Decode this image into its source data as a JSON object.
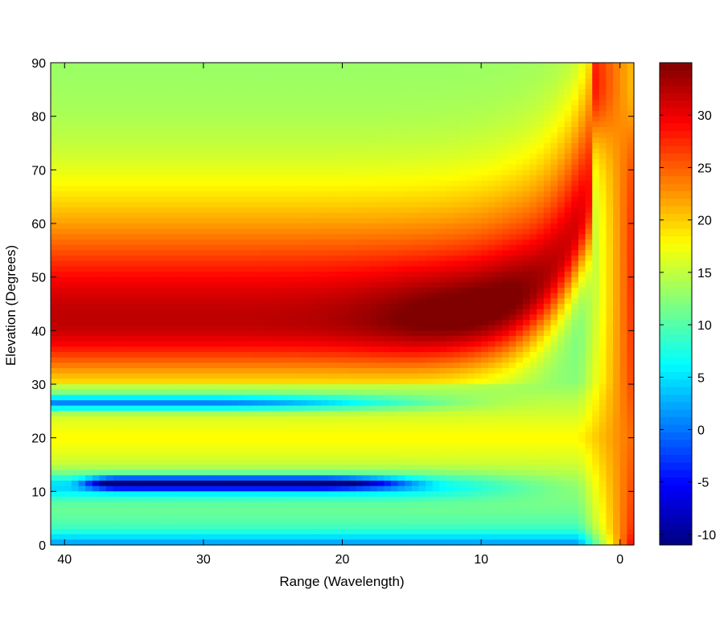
{
  "chart_data": {
    "type": "heatmap",
    "title": "",
    "xlabel": "Range (Wavelength)",
    "ylabel": "Elevation (Degrees)",
    "xlim": [
      41,
      -1
    ],
    "ylim": [
      0,
      90
    ],
    "x_reversed": true,
    "xticks": [
      40,
      30,
      20,
      10,
      0
    ],
    "yticks": [
      0,
      10,
      20,
      30,
      40,
      50,
      60,
      70,
      80,
      90
    ],
    "colorbar": {
      "colormap": "jet",
      "clim": [
        -11,
        35
      ],
      "ticks": [
        -10,
        -5,
        0,
        5,
        10,
        15,
        20,
        25,
        30
      ]
    },
    "description_of_field": {
      "peak_ridge": {
        "value_max": 35,
        "range_at_peak": 10,
        "elevation_at_peak": 42
      },
      "minimum_lines": [
        {
          "elevation": 26.5,
          "min_value": 1,
          "range_extent": [
            41,
            28
          ]
        },
        {
          "elevation": 11.5,
          "min_value": -10,
          "range_extent": [
            37,
            16
          ]
        }
      ],
      "near_zero_range_value": 23,
      "bottom_edge_value": 9,
      "top_left_value": 14
    }
  }
}
